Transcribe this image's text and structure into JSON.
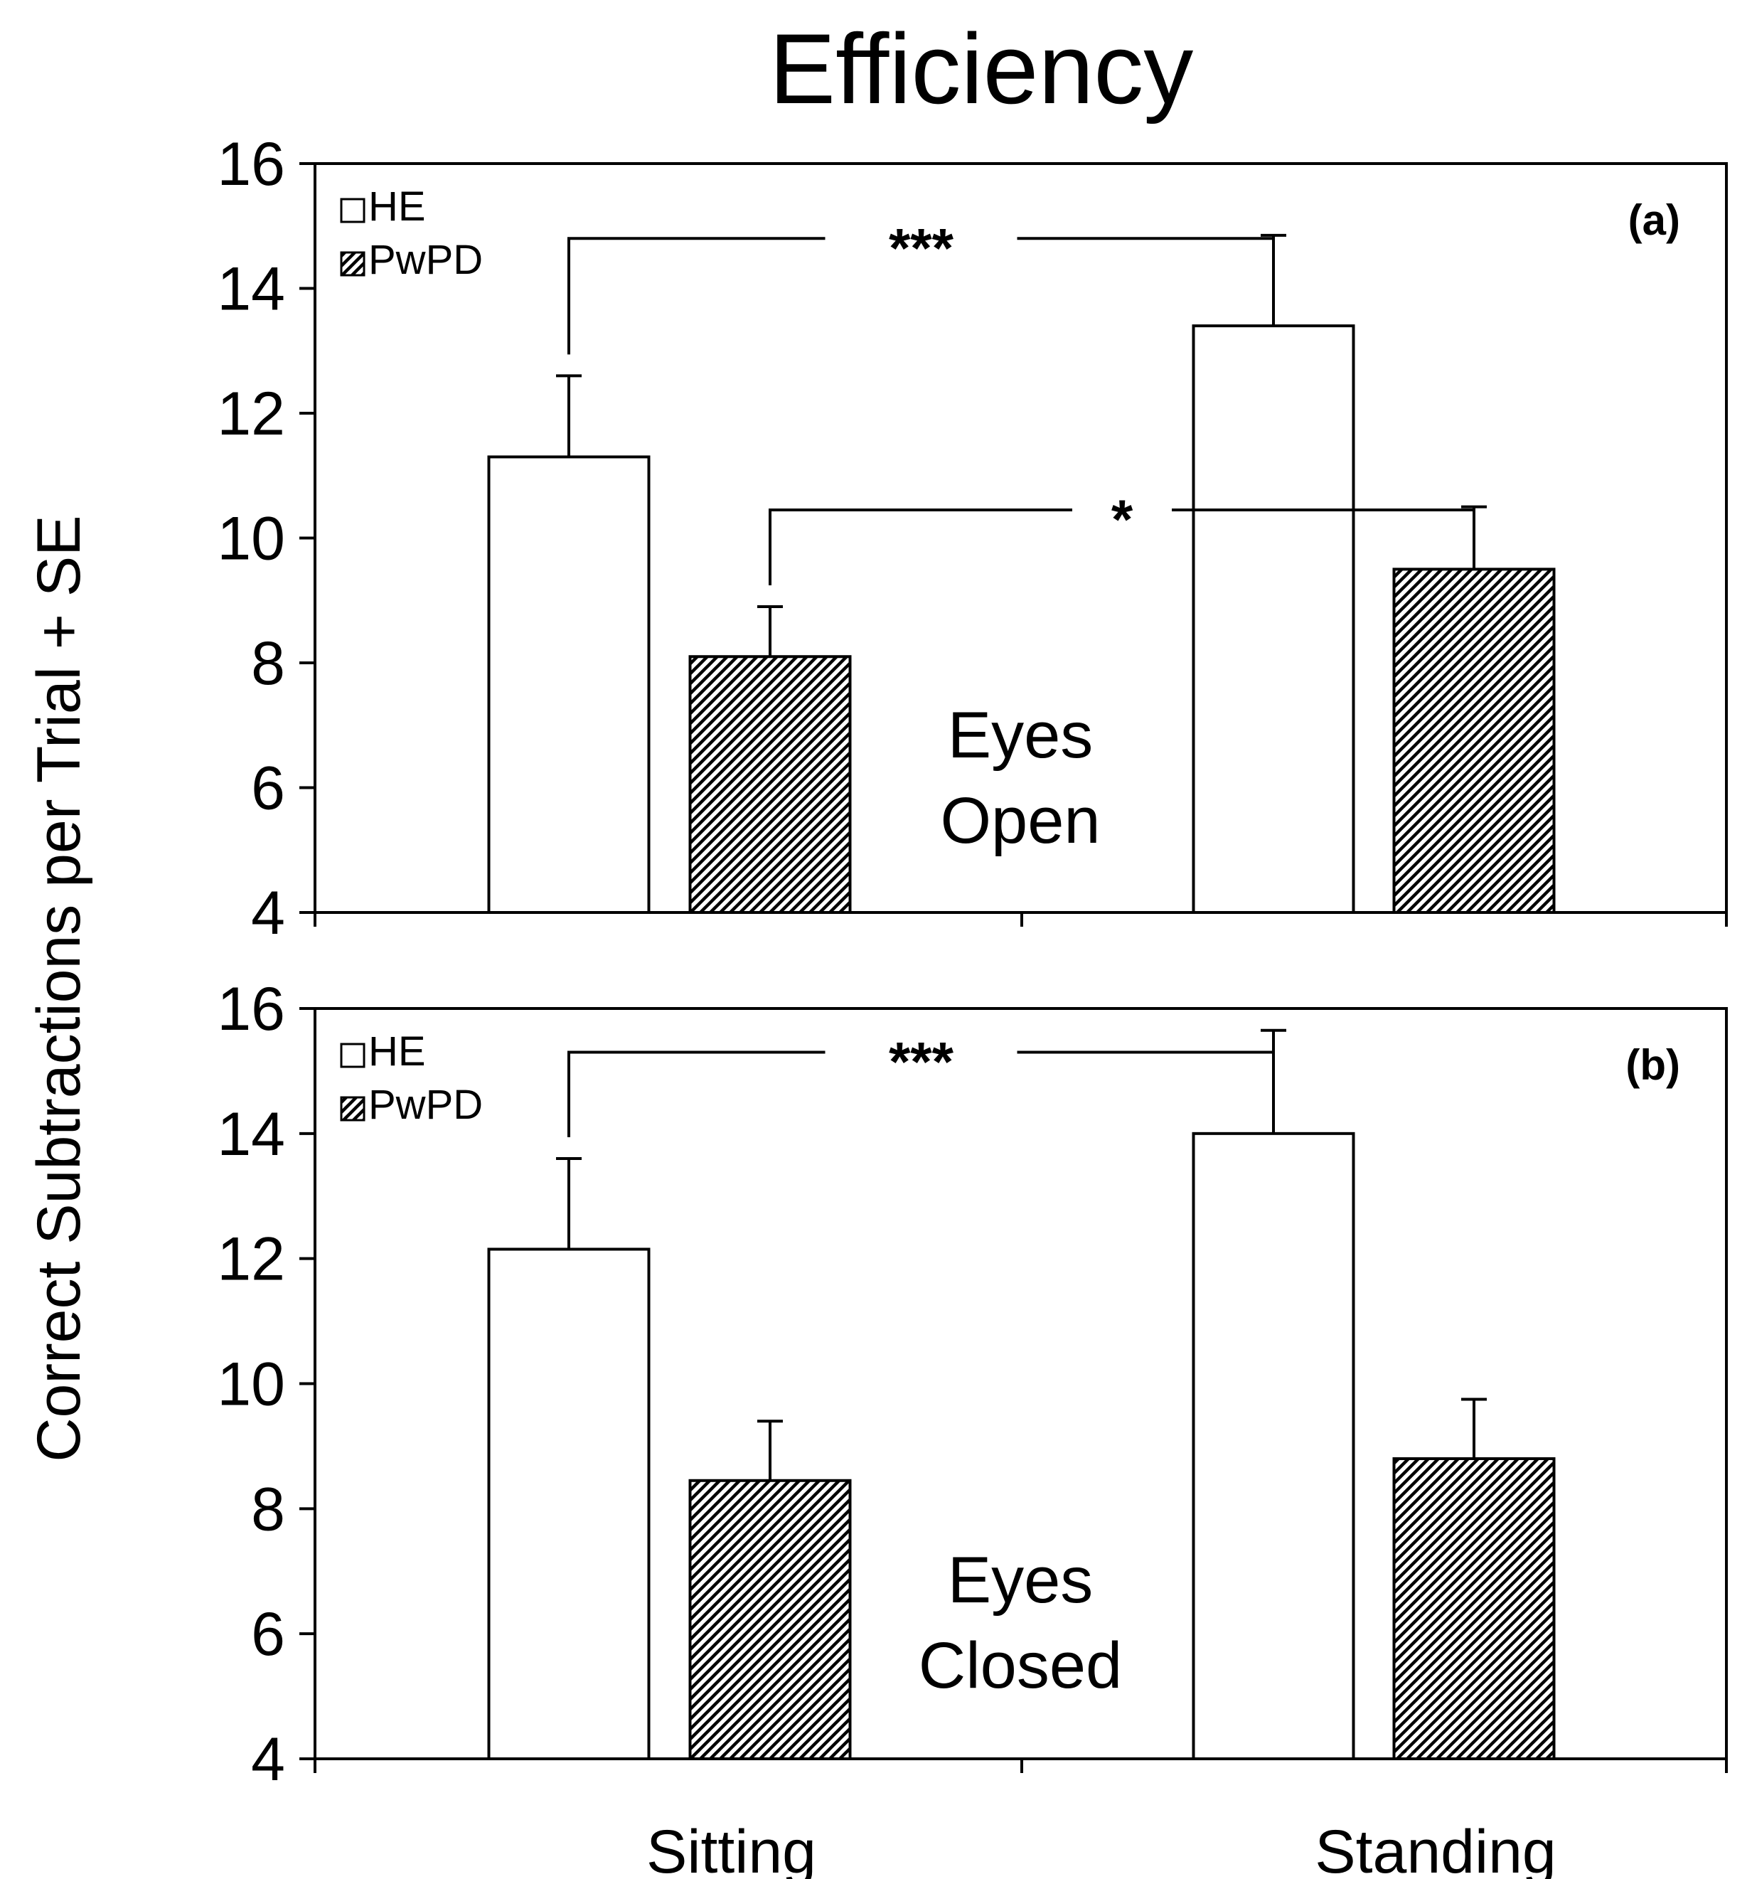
{
  "title": "Efficiency",
  "ylabel": "Correct Subtractions per Trial + SE",
  "legend": {
    "he": "HE",
    "pwpd": "PwPD"
  },
  "chart_data": [
    {
      "type": "bar",
      "panel": "(a)",
      "condition_lines": [
        "Eyes",
        "Open"
      ],
      "categories": [
        "Sitting",
        "Standing"
      ],
      "ylim": [
        4,
        16
      ],
      "yticks": [
        4,
        6,
        8,
        10,
        12,
        14,
        16
      ],
      "series": [
        {
          "name": "HE",
          "pattern": "open",
          "values": [
            11.3,
            13.4
          ],
          "se": [
            1.3,
            1.45
          ]
        },
        {
          "name": "PwPD",
          "pattern": "hatched",
          "values": [
            8.1,
            9.5
          ],
          "se": [
            0.8,
            1.0
          ]
        }
      ],
      "significance": [
        {
          "label": "***",
          "series": "HE",
          "from": "Sitting",
          "to": "Standing",
          "y": 14.8
        },
        {
          "label": "*",
          "series": "PwPD",
          "from": "Sitting",
          "to": "Standing",
          "y": 10.45
        }
      ],
      "color": "#000000",
      "background": "#ffffff"
    },
    {
      "type": "bar",
      "panel": "(b)",
      "condition_lines": [
        "Eyes",
        "Closed"
      ],
      "categories": [
        "Sitting",
        "Standing"
      ],
      "ylim": [
        4,
        16
      ],
      "yticks": [
        4,
        6,
        8,
        10,
        12,
        14,
        16
      ],
      "series": [
        {
          "name": "HE",
          "pattern": "open",
          "values": [
            12.15,
            14.0
          ],
          "se": [
            1.45,
            1.65
          ]
        },
        {
          "name": "PwPD",
          "pattern": "hatched",
          "values": [
            8.45,
            8.8
          ],
          "se": [
            0.95,
            0.95
          ]
        }
      ],
      "significance": [
        {
          "label": "***",
          "series": "HE",
          "from": "Sitting",
          "to": "Standing",
          "y": 15.3
        }
      ],
      "color": "#000000",
      "background": "#ffffff"
    }
  ]
}
